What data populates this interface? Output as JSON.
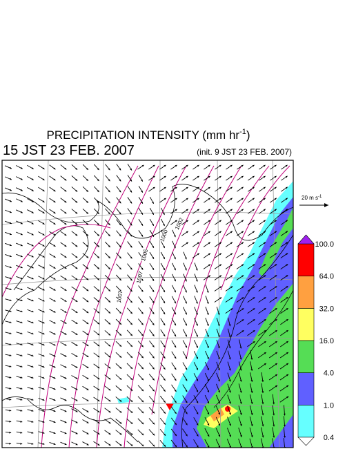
{
  "header": {
    "title": "PRECIPITATION INTENSITY (mm hr",
    "title_exponent": "-1",
    "title_close": ")",
    "valid_time": "15 JST 23 FEB. 2007",
    "init_time": "(init. 9 JST 23 FEB. 2007)"
  },
  "scale_arrow": {
    "label": "20 m s",
    "exponent": "-1"
  },
  "colorbar": {
    "levels": [
      "0.4",
      "1.0",
      "4.0",
      "16.0",
      "32.0",
      "64.0",
      "100.0"
    ]
  },
  "map": {
    "contour_labels": [
      "1002",
      "1000",
      "1005",
      "1007",
      "1007"
    ]
  }
}
